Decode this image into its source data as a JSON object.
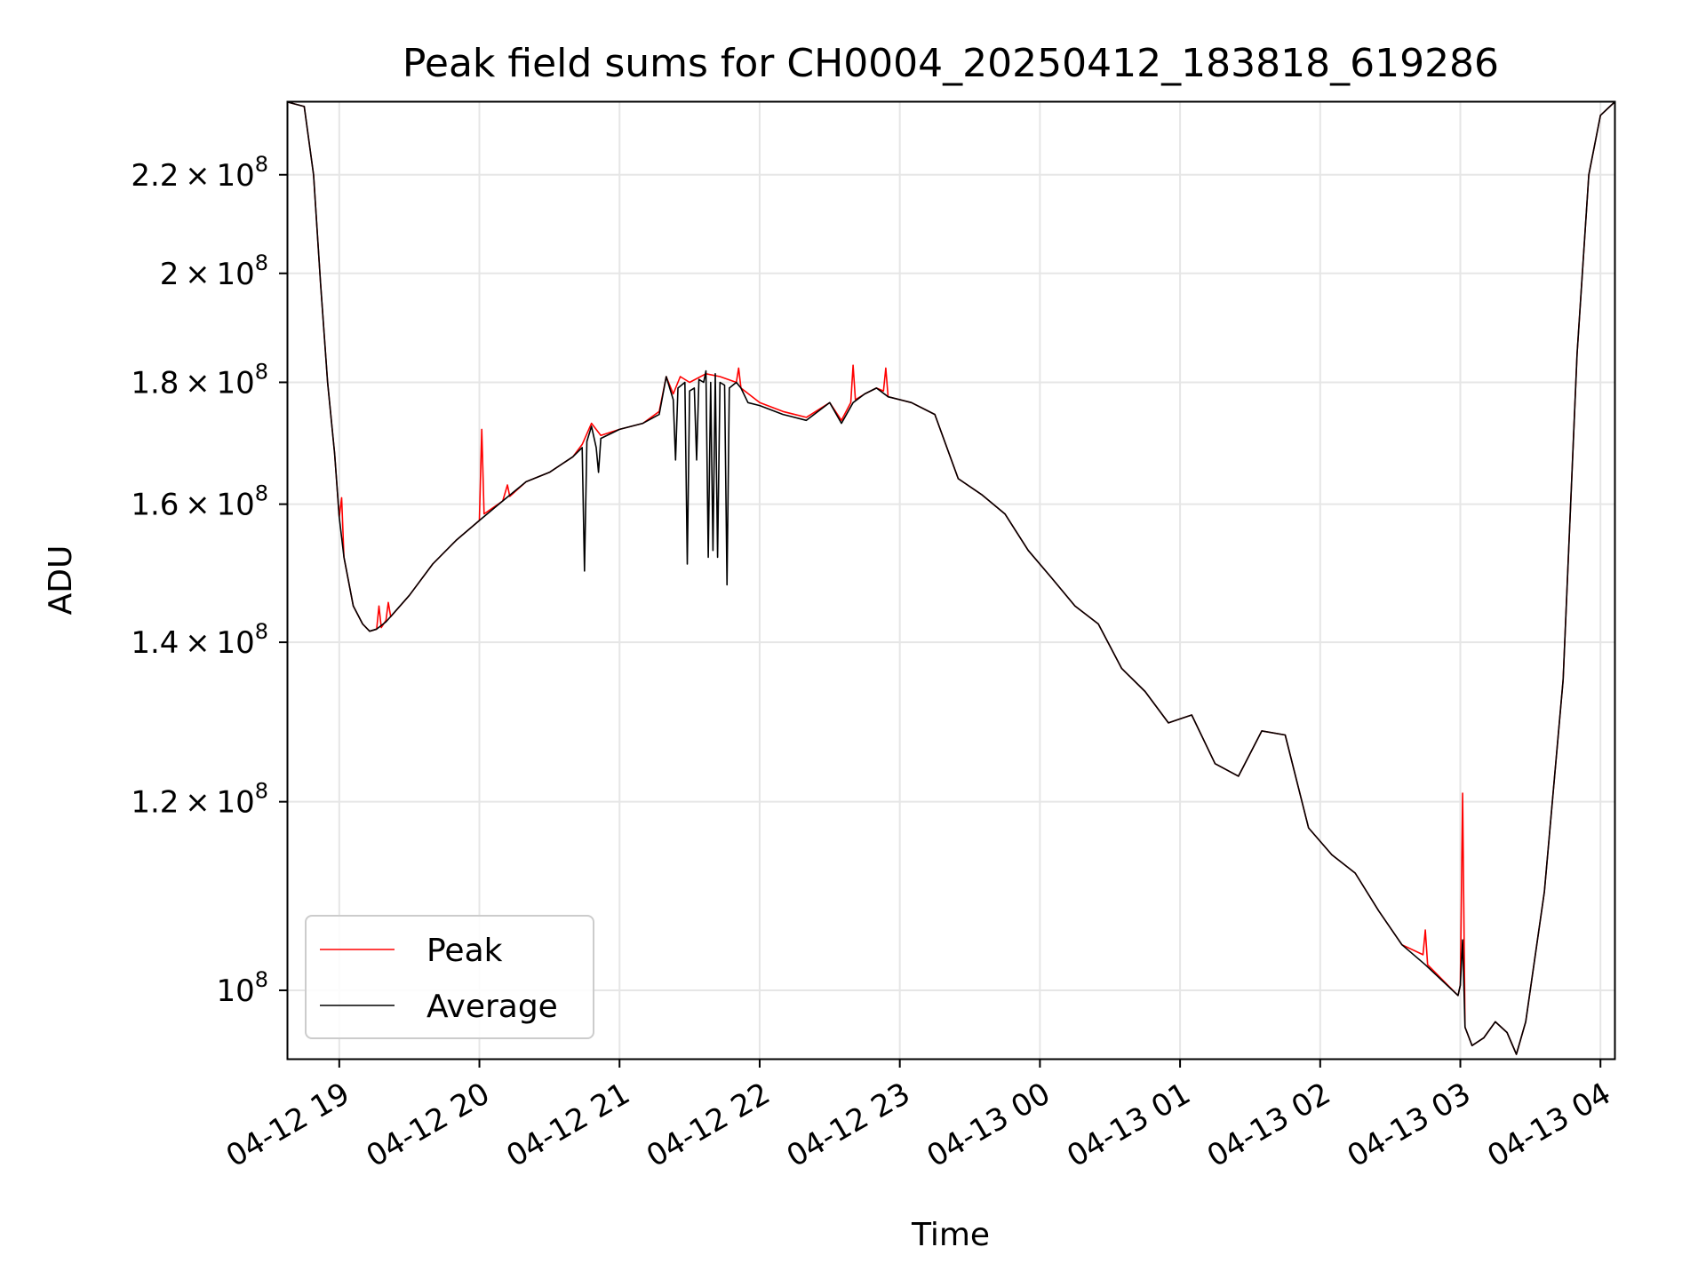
{
  "chart_data": {
    "type": "line",
    "title": "Peak field sums for CH0004_20250412_183818_619286",
    "xlabel": "Time",
    "ylabel": "ADU",
    "yscale": "log",
    "ylim": [
      93600000,
      236000000
    ],
    "xlim": [
      "04-12 18:38",
      "04-13 04:06"
    ],
    "grid": true,
    "legend_position": "lower-left",
    "x_ticks": [
      {
        "t": "04-12 19:00",
        "label": "04-12 19"
      },
      {
        "t": "04-12 20:00",
        "label": "04-12 20"
      },
      {
        "t": "04-12 21:00",
        "label": "04-12 21"
      },
      {
        "t": "04-12 22:00",
        "label": "04-12 22"
      },
      {
        "t": "04-12 23:00",
        "label": "04-12 23"
      },
      {
        "t": "04-13 00:00",
        "label": "04-13 00"
      },
      {
        "t": "04-13 01:00",
        "label": "04-13 01"
      },
      {
        "t": "04-13 02:00",
        "label": "04-13 02"
      },
      {
        "t": "04-13 03:00",
        "label": "04-13 03"
      },
      {
        "t": "04-13 04:00",
        "label": "04-13 04"
      }
    ],
    "y_ticks": [
      {
        "value": 100000000,
        "mant": "",
        "exp": "8"
      },
      {
        "value": 120000000,
        "mant": "1.2",
        "exp": "8"
      },
      {
        "value": 140000000,
        "mant": "1.4",
        "exp": "8"
      },
      {
        "value": 160000000,
        "mant": "1.6",
        "exp": "8"
      },
      {
        "value": 180000000,
        "mant": "1.8",
        "exp": "8"
      },
      {
        "value": 200000000,
        "mant": "2",
        "exp": "8"
      },
      {
        "value": 220000000,
        "mant": "2.2",
        "exp": "8"
      }
    ],
    "series": [
      {
        "name": "Peak",
        "color": "#ff0000",
        "points": [
          [
            "04-12 18:38",
            236000000
          ],
          [
            "04-12 18:45",
            235000000
          ],
          [
            "04-12 18:49",
            220000000
          ],
          [
            "04-12 18:52",
            198000000
          ],
          [
            "04-12 18:55",
            180000000
          ],
          [
            "04-12 18:58",
            168000000
          ],
          [
            "04-12 19:00",
            158000000
          ],
          [
            "04-12 19:01",
            161000000
          ],
          [
            "04-12 19:02",
            152000000
          ],
          [
            "04-12 19:06",
            145000000
          ],
          [
            "04-12 19:10",
            142500000
          ],
          [
            "04-12 19:13",
            141500000
          ],
          [
            "04-12 19:16",
            141800000
          ],
          [
            "04-12 19:17",
            145000000
          ],
          [
            "04-12 19:18",
            142000000
          ],
          [
            "04-12 19:20",
            143000000
          ],
          [
            "04-12 19:21",
            145500000
          ],
          [
            "04-12 19:22",
            143500000
          ],
          [
            "04-12 19:30",
            146500000
          ],
          [
            "04-12 19:40",
            151000000
          ],
          [
            "04-12 19:50",
            154500000
          ],
          [
            "04-12 20:00",
            157500000
          ],
          [
            "04-12 20:01",
            172000000
          ],
          [
            "04-12 20:02",
            158500000
          ],
          [
            "04-12 20:10",
            160500000
          ],
          [
            "04-12 20:12",
            163000000
          ],
          [
            "04-12 20:13",
            161200000
          ],
          [
            "04-12 20:20",
            163500000
          ],
          [
            "04-12 20:30",
            165000000
          ],
          [
            "04-12 20:40",
            167500000
          ],
          [
            "04-12 20:44",
            169500000
          ],
          [
            "04-12 20:48",
            173000000
          ],
          [
            "04-12 20:52",
            171000000
          ],
          [
            "04-12 21:00",
            172000000
          ],
          [
            "04-12 21:10",
            173000000
          ],
          [
            "04-12 21:17",
            175000000
          ],
          [
            "04-12 21:20",
            181000000
          ],
          [
            "04-12 21:23",
            178000000
          ],
          [
            "04-12 21:26",
            181000000
          ],
          [
            "04-12 21:30",
            180000000
          ],
          [
            "04-12 21:37",
            181500000
          ],
          [
            "04-12 21:43",
            181000000
          ],
          [
            "04-12 21:50",
            180000000
          ],
          [
            "04-12 21:51",
            182500000
          ],
          [
            "04-12 21:52",
            179000000
          ],
          [
            "04-12 22:00",
            176500000
          ],
          [
            "04-12 22:10",
            175000000
          ],
          [
            "04-12 22:20",
            174000000
          ],
          [
            "04-12 22:30",
            176500000
          ],
          [
            "04-12 22:35",
            173500000
          ],
          [
            "04-12 22:39",
            176500000
          ],
          [
            "04-12 22:40",
            183000000
          ],
          [
            "04-12 22:41",
            177000000
          ],
          [
            "04-12 22:45",
            178000000
          ],
          [
            "04-12 22:50",
            179000000
          ],
          [
            "04-12 22:53",
            178500000
          ],
          [
            "04-12 22:54",
            182500000
          ],
          [
            "04-12 22:55",
            177500000
          ],
          [
            "04-12 23:05",
            176500000
          ],
          [
            "04-12 23:15",
            174500000
          ],
          [
            "04-12 23:25",
            164000000
          ],
          [
            "04-12 23:35",
            161500000
          ],
          [
            "04-12 23:45",
            158500000
          ],
          [
            "04-12 23:55",
            153000000
          ],
          [
            "04-13 00:05",
            149000000
          ],
          [
            "04-13 00:15",
            145000000
          ],
          [
            "04-13 00:25",
            142500000
          ],
          [
            "04-13 00:35",
            136500000
          ],
          [
            "04-13 00:45",
            133500000
          ],
          [
            "04-13 00:55",
            129500000
          ],
          [
            "04-13 01:00",
            130000000
          ],
          [
            "04-13 01:05",
            130500000
          ],
          [
            "04-13 01:15",
            124500000
          ],
          [
            "04-13 01:25",
            123000000
          ],
          [
            "04-13 01:35",
            128500000
          ],
          [
            "04-13 01:45",
            128000000
          ],
          [
            "04-13 01:55",
            117000000
          ],
          [
            "04-13 02:05",
            114000000
          ],
          [
            "04-13 02:15",
            112000000
          ],
          [
            "04-13 02:25",
            108000000
          ],
          [
            "04-13 02:35",
            104500000
          ],
          [
            "04-13 02:44",
            103500000
          ],
          [
            "04-13 02:45",
            106000000
          ],
          [
            "04-13 02:46",
            102500000
          ],
          [
            "04-13 02:59",
            99500000
          ],
          [
            "04-13 03:00",
            100500000
          ],
          [
            "04-13 03:01",
            121000000
          ],
          [
            "04-13 03:02",
            96500000
          ],
          [
            "04-13 03:05",
            94800000
          ],
          [
            "04-13 03:10",
            95500000
          ],
          [
            "04-13 03:15",
            97000000
          ],
          [
            "04-13 03:20",
            96000000
          ],
          [
            "04-13 03:24",
            94000000
          ],
          [
            "04-13 03:28",
            97000000
          ],
          [
            "04-13 03:36",
            110000000
          ],
          [
            "04-13 03:44",
            135000000
          ],
          [
            "04-13 03:50",
            185000000
          ],
          [
            "04-13 03:55",
            220000000
          ],
          [
            "04-13 04:00",
            233000000
          ],
          [
            "04-13 04:06",
            236000000
          ]
        ]
      },
      {
        "name": "Average",
        "color": "#000000",
        "points": [
          [
            "04-12 18:38",
            236000000
          ],
          [
            "04-12 18:45",
            235000000
          ],
          [
            "04-12 18:49",
            220000000
          ],
          [
            "04-12 18:52",
            198000000
          ],
          [
            "04-12 18:55",
            180000000
          ],
          [
            "04-12 18:58",
            168000000
          ],
          [
            "04-12 19:00",
            158000000
          ],
          [
            "04-12 19:02",
            152000000
          ],
          [
            "04-12 19:06",
            145000000
          ],
          [
            "04-12 19:10",
            142500000
          ],
          [
            "04-12 19:13",
            141500000
          ],
          [
            "04-12 19:16",
            141800000
          ],
          [
            "04-12 19:20",
            142800000
          ],
          [
            "04-12 19:30",
            146500000
          ],
          [
            "04-12 19:40",
            151000000
          ],
          [
            "04-12 19:50",
            154500000
          ],
          [
            "04-12 20:00",
            157500000
          ],
          [
            "04-12 20:10",
            160500000
          ],
          [
            "04-12 20:20",
            163500000
          ],
          [
            "04-12 20:30",
            165000000
          ],
          [
            "04-12 20:40",
            167500000
          ],
          [
            "04-12 20:44",
            169000000
          ],
          [
            "04-12 20:45",
            150000000
          ],
          [
            "04-12 20:46",
            170000000
          ],
          [
            "04-12 20:48",
            172500000
          ],
          [
            "04-12 20:50",
            169000000
          ],
          [
            "04-12 20:51",
            165000000
          ],
          [
            "04-12 20:52",
            170500000
          ],
          [
            "04-12 21:00",
            172000000
          ],
          [
            "04-12 21:10",
            173000000
          ],
          [
            "04-12 21:17",
            174500000
          ],
          [
            "04-12 21:20",
            181000000
          ],
          [
            "04-12 21:23",
            177000000
          ],
          [
            "04-12 21:24",
            167000000
          ],
          [
            "04-12 21:25",
            179000000
          ],
          [
            "04-12 21:28",
            180000000
          ],
          [
            "04-12 21:29",
            151000000
          ],
          [
            "04-12 21:30",
            178500000
          ],
          [
            "04-12 21:32",
            179000000
          ],
          [
            "04-12 21:33",
            167000000
          ],
          [
            "04-12 21:34",
            180500000
          ],
          [
            "04-12 21:36",
            180000000
          ],
          [
            "04-12 21:37",
            182000000
          ],
          [
            "04-12 21:38",
            152000000
          ],
          [
            "04-12 21:39",
            180000000
          ],
          [
            "04-12 21:40",
            153000000
          ],
          [
            "04-12 21:41",
            181500000
          ],
          [
            "04-12 21:42",
            152000000
          ],
          [
            "04-12 21:43",
            180000000
          ],
          [
            "04-12 21:45",
            179500000
          ],
          [
            "04-12 21:46",
            148000000
          ],
          [
            "04-12 21:47",
            179000000
          ],
          [
            "04-12 21:50",
            180000000
          ],
          [
            "04-12 21:52",
            179000000
          ],
          [
            "04-12 21:55",
            176500000
          ],
          [
            "04-12 22:00",
            176000000
          ],
          [
            "04-12 22:10",
            174500000
          ],
          [
            "04-12 22:20",
            173500000
          ],
          [
            "04-12 22:30",
            176500000
          ],
          [
            "04-12 22:35",
            173000000
          ],
          [
            "04-12 22:40",
            176500000
          ],
          [
            "04-12 22:45",
            178000000
          ],
          [
            "04-12 22:50",
            179000000
          ],
          [
            "04-12 22:55",
            177500000
          ],
          [
            "04-12 23:05",
            176500000
          ],
          [
            "04-12 23:15",
            174500000
          ],
          [
            "04-12 23:25",
            164000000
          ],
          [
            "04-12 23:35",
            161500000
          ],
          [
            "04-12 23:45",
            158500000
          ],
          [
            "04-12 23:55",
            153000000
          ],
          [
            "04-13 00:05",
            149000000
          ],
          [
            "04-13 00:15",
            145000000
          ],
          [
            "04-13 00:25",
            142500000
          ],
          [
            "04-13 00:35",
            136500000
          ],
          [
            "04-13 00:45",
            133500000
          ],
          [
            "04-13 00:55",
            129500000
          ],
          [
            "04-13 01:00",
            130000000
          ],
          [
            "04-13 01:05",
            130500000
          ],
          [
            "04-13 01:15",
            124500000
          ],
          [
            "04-13 01:25",
            123000000
          ],
          [
            "04-13 01:35",
            128500000
          ],
          [
            "04-13 01:45",
            128000000
          ],
          [
            "04-13 01:55",
            117000000
          ],
          [
            "04-13 02:05",
            114000000
          ],
          [
            "04-13 02:15",
            112000000
          ],
          [
            "04-13 02:25",
            108000000
          ],
          [
            "04-13 02:35",
            104500000
          ],
          [
            "04-13 02:45",
            102500000
          ],
          [
            "04-13 02:59",
            99500000
          ],
          [
            "04-13 03:00",
            100500000
          ],
          [
            "04-13 03:01",
            105000000
          ],
          [
            "04-13 03:02",
            96500000
          ],
          [
            "04-13 03:05",
            94800000
          ],
          [
            "04-13 03:10",
            95500000
          ],
          [
            "04-13 03:15",
            97000000
          ],
          [
            "04-13 03:20",
            96000000
          ],
          [
            "04-13 03:24",
            94000000
          ],
          [
            "04-13 03:28",
            97000000
          ],
          [
            "04-13 03:36",
            110000000
          ],
          [
            "04-13 03:44",
            135000000
          ],
          [
            "04-13 03:50",
            185000000
          ],
          [
            "04-13 03:55",
            220000000
          ],
          [
            "04-13 04:00",
            233000000
          ],
          [
            "04-13 04:06",
            236000000
          ]
        ]
      }
    ]
  }
}
